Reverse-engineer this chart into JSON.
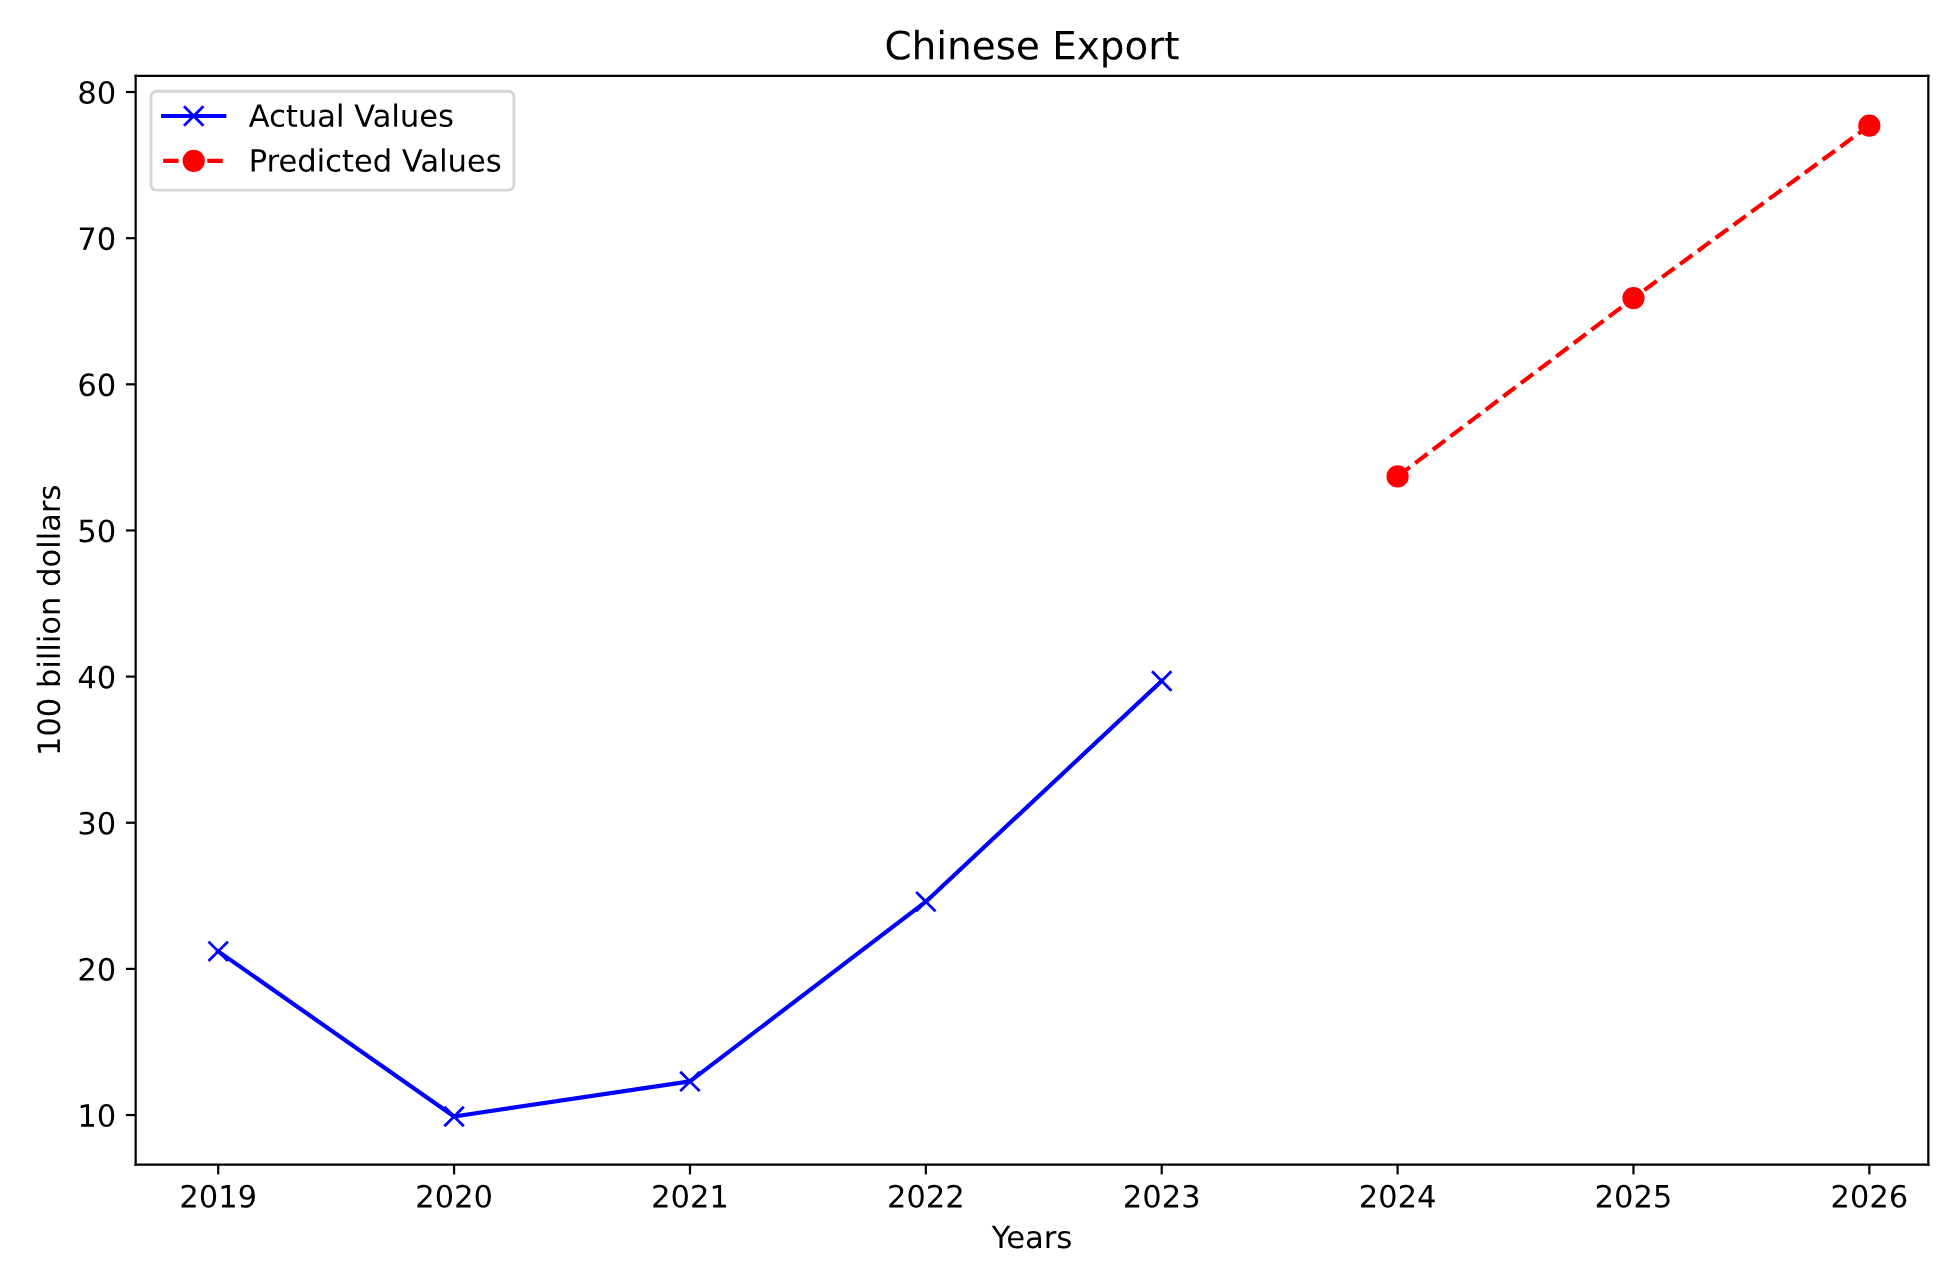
{
  "chart_data": {
    "type": "line",
    "title": "Chinese Export",
    "xlabel": "Years",
    "ylabel": "100 billion dollars",
    "series": [
      {
        "name": "Actual Values",
        "color": "#0000ff",
        "marker": "cross",
        "line_style": "solid",
        "x": [
          2019,
          2020,
          2021,
          2022,
          2023
        ],
        "values": [
          21.2,
          9.9,
          12.3,
          24.6,
          39.7
        ]
      },
      {
        "name": "Predicted Values",
        "color": "#ff0000",
        "marker": "circle",
        "line_style": "dashed",
        "x": [
          2024,
          2025,
          2026
        ],
        "values": [
          53.7,
          65.9,
          77.7
        ]
      }
    ],
    "xlim": [
      2018.65,
      2026.25
    ],
    "xticks": [
      2019,
      2020,
      2021,
      2022,
      2023,
      2024,
      2025,
      2026
    ],
    "ylim": [
      6.6,
      81.1
    ],
    "yticks": [
      10,
      20,
      30,
      40,
      50,
      60,
      70,
      80
    ],
    "legend": "top left",
    "grid": false
  }
}
